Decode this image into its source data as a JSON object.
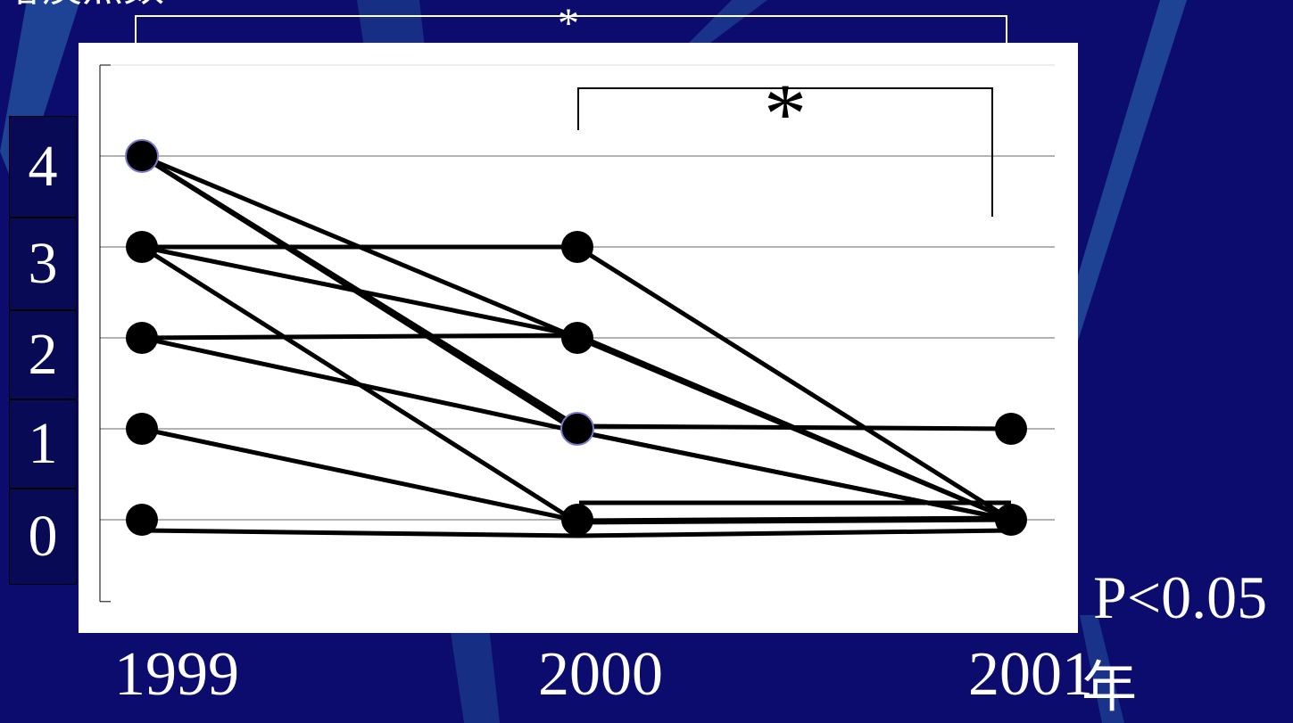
{
  "y_title": "喀痰点数",
  "x_unit": "年",
  "p_value": "P<0.05",
  "colors": {
    "background": "#0b0c6e",
    "plot_background": "#ffffff",
    "lines": "#000000",
    "text": "#ffffff"
  },
  "chart_data": {
    "type": "line",
    "x": [
      "1999",
      "2000",
      "2001"
    ],
    "ylabel": "喀痰点数",
    "xlabel": "年",
    "ylim": [
      -0.9,
      5.0
    ],
    "yticks": [
      "0",
      "1",
      "2",
      "3",
      "4"
    ],
    "grid": true,
    "legend": "none",
    "series": [
      {
        "values": [
          4,
          2,
          0
        ]
      },
      {
        "values": [
          4,
          1,
          1
        ]
      },
      {
        "values": [
          4,
          1,
          0
        ]
      },
      {
        "values": [
          3,
          3,
          0
        ]
      },
      {
        "values": [
          3,
          2,
          0
        ]
      },
      {
        "values": [
          3,
          0,
          0
        ]
      },
      {
        "values": [
          2,
          2,
          0
        ]
      },
      {
        "values": [
          2,
          1,
          0
        ]
      },
      {
        "values": [
          1,
          0,
          0
        ]
      },
      {
        "values": [
          0,
          0,
          0
        ]
      }
    ],
    "annotations": [
      {
        "text": "*",
        "from": "1999",
        "to": "2001"
      },
      {
        "text": "*",
        "from": "2000",
        "to": "2001"
      }
    ]
  }
}
